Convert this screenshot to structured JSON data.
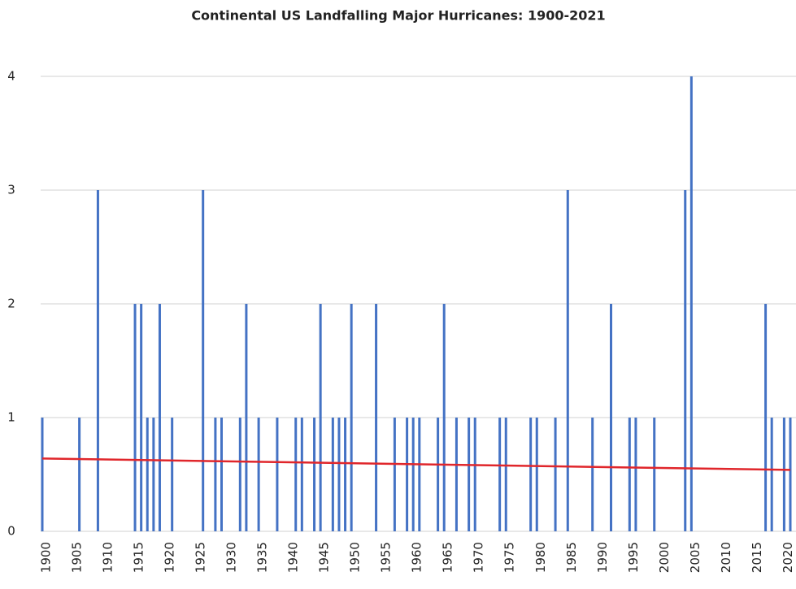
{
  "chart_data": {
    "type": "bar",
    "title": "Continental US Landfalling Major Hurricanes: 1900-2021",
    "x": [
      1900,
      1906,
      1909,
      1915,
      1916,
      1917,
      1918,
      1919,
      1921,
      1926,
      1928,
      1929,
      1932,
      1933,
      1935,
      1938,
      1941,
      1942,
      1944,
      1945,
      1947,
      1948,
      1949,
      1950,
      1954,
      1957,
      1959,
      1960,
      1961,
      1964,
      1965,
      1967,
      1969,
      1970,
      1974,
      1975,
      1979,
      1980,
      1983,
      1985,
      1989,
      1992,
      1995,
      1996,
      1999,
      2004,
      2005,
      2017,
      2018,
      2020,
      2021
    ],
    "values": [
      1,
      1,
      3,
      2,
      2,
      1,
      1,
      2,
      1,
      3,
      1,
      1,
      1,
      2,
      1,
      1,
      1,
      1,
      1,
      2,
      1,
      1,
      1,
      2,
      2,
      1,
      1,
      1,
      1,
      1,
      2,
      1,
      1,
      1,
      1,
      1,
      1,
      1,
      1,
      3,
      1,
      2,
      1,
      1,
      1,
      3,
      4,
      2,
      1,
      1,
      1
    ],
    "color": "#4472c4",
    "trendline": {
      "x": [
        1900,
        2021
      ],
      "values": [
        0.64,
        0.54
      ],
      "color": "#e0262b"
    },
    "xlim": [
      1900,
      2021
    ],
    "xticks": [
      1900,
      1905,
      1910,
      1915,
      1920,
      1925,
      1930,
      1935,
      1940,
      1945,
      1950,
      1955,
      1960,
      1965,
      1970,
      1975,
      1980,
      1985,
      1990,
      1995,
      2000,
      2005,
      2010,
      2015,
      2020
    ],
    "ylim": [
      0,
      4
    ],
    "yticks": [
      0,
      1,
      2,
      3,
      4
    ],
    "grid": true
  }
}
